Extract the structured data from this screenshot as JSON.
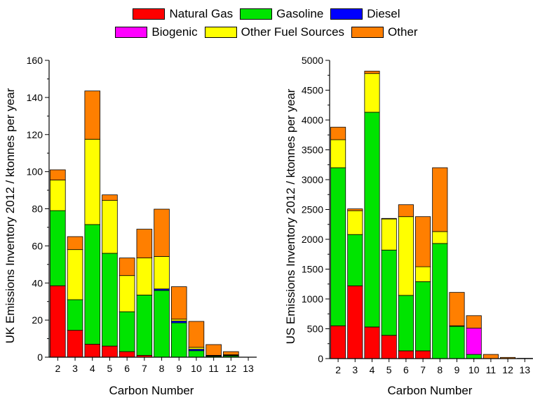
{
  "legend": [
    {
      "name": "Natural Gas",
      "color": "#ff0000"
    },
    {
      "name": "Gasoline",
      "color": "#00e400"
    },
    {
      "name": "Diesel",
      "color": "#0000ff"
    },
    {
      "name": "Biogenic",
      "color": "#ff00ff"
    },
    {
      "name": "Other Fuel Sources",
      "color": "#ffff00"
    },
    {
      "name": "Other",
      "color": "#ff7f00"
    }
  ],
  "chart_data": [
    {
      "type": "bar",
      "stacked": true,
      "title": "",
      "xlabel": "Carbon Number",
      "ylabel": "UK Emissions Inventory 2012 / ktonnes per year",
      "categories": [
        "2",
        "3",
        "4",
        "5",
        "6",
        "7",
        "8",
        "9",
        "10",
        "11",
        "12",
        "13"
      ],
      "ylim": [
        0,
        160
      ],
      "yticks": [
        0,
        20,
        40,
        60,
        80,
        100,
        120,
        140,
        160
      ],
      "series": [
        {
          "name": "Natural Gas",
          "color": "#ff0000",
          "values": [
            38.5,
            14.5,
            7,
            6,
            3,
            1,
            0,
            0,
            0,
            0,
            0,
            0
          ]
        },
        {
          "name": "Gasoline",
          "color": "#00e400",
          "values": [
            40.5,
            16.5,
            64.5,
            50,
            21.5,
            32.5,
            36,
            18.5,
            3.5,
            0.5,
            0.7,
            0
          ]
        },
        {
          "name": "Diesel",
          "color": "#0000ff",
          "values": [
            0,
            0,
            0,
            0,
            0,
            0,
            0.8,
            1,
            0.8,
            0.3,
            0.3,
            0
          ]
        },
        {
          "name": "Biogenic",
          "color": "#ff00ff",
          "values": [
            0,
            0,
            0,
            0,
            0,
            0,
            0,
            0,
            0,
            0,
            0,
            0
          ]
        },
        {
          "name": "Other Fuel Sources",
          "color": "#ffff00",
          "values": [
            16.5,
            27,
            46,
            28.5,
            19.5,
            20,
            17.5,
            1,
            1,
            0.2,
            0.3,
            0
          ]
        },
        {
          "name": "Other",
          "color": "#ff7f00",
          "values": [
            5.5,
            7,
            26,
            3,
            9.5,
            15.5,
            25.5,
            17.5,
            14,
            5.8,
            1.7,
            0
          ]
        }
      ]
    },
    {
      "type": "bar",
      "stacked": true,
      "title": "",
      "xlabel": "Carbon Number",
      "ylabel": "US Emissions Inventory 2012 / ktonnes per year",
      "categories": [
        "2",
        "3",
        "4",
        "5",
        "6",
        "7",
        "8",
        "9",
        "10",
        "11",
        "12",
        "13"
      ],
      "ylim": [
        0,
        5000
      ],
      "yticks": [
        0,
        500,
        1000,
        1500,
        2000,
        2500,
        3000,
        3500,
        4000,
        4500,
        5000
      ],
      "series": [
        {
          "name": "Natural Gas",
          "color": "#ff0000",
          "values": [
            550,
            1220,
            530,
            390,
            130,
            130,
            0,
            0,
            0,
            0,
            0,
            0
          ]
        },
        {
          "name": "Gasoline",
          "color": "#00e400",
          "values": [
            2650,
            860,
            3600,
            1430,
            930,
            1160,
            1930,
            540,
            70,
            0,
            0,
            0
          ]
        },
        {
          "name": "Diesel",
          "color": "#0000ff",
          "values": [
            0,
            0,
            0,
            0,
            0,
            0,
            0,
            0,
            0,
            0,
            0,
            0
          ]
        },
        {
          "name": "Biogenic",
          "color": "#ff00ff",
          "values": [
            0,
            0,
            0,
            0,
            0,
            0,
            0,
            0,
            440,
            0,
            0,
            0
          ]
        },
        {
          "name": "Other Fuel Sources",
          "color": "#ffff00",
          "values": [
            470,
            400,
            650,
            520,
            1320,
            250,
            200,
            10,
            0,
            0,
            0,
            0
          ]
        },
        {
          "name": "Other",
          "color": "#ff7f00",
          "values": [
            210,
            30,
            40,
            10,
            200,
            840,
            1070,
            560,
            210,
            70,
            20,
            5
          ]
        }
      ]
    }
  ]
}
